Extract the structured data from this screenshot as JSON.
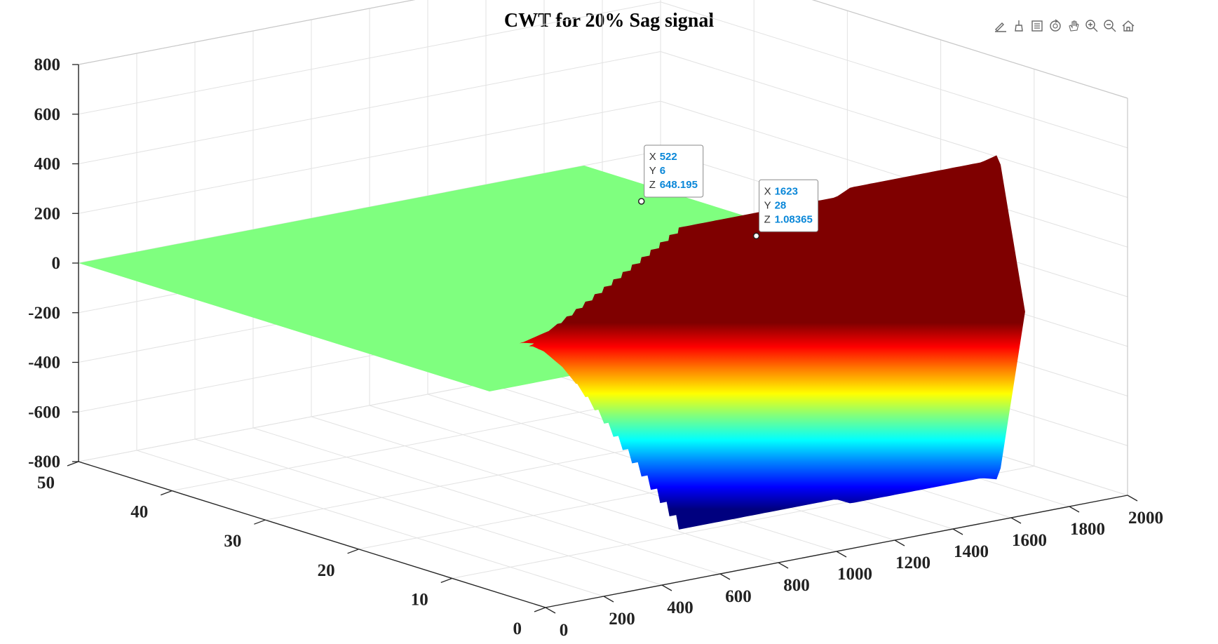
{
  "chart_data": {
    "type": "surface",
    "title": "CWT for 20% Sag signal",
    "xlabel": "",
    "ylabel": "",
    "zlabel": "",
    "xlim": [
      0,
      2000
    ],
    "ylim": [
      0,
      50
    ],
    "zlim": [
      -800,
      800
    ],
    "x_ticks": [
      "0",
      "200",
      "400",
      "600",
      "800",
      "1000",
      "1200",
      "1400",
      "1600",
      "1800",
      "2000"
    ],
    "y_ticks": [
      "0",
      "10",
      "20",
      "30",
      "40",
      "50"
    ],
    "z_ticks": [
      "800",
      "600",
      "400",
      "200",
      "0",
      "-200",
      "-400",
      "-600",
      "-800"
    ],
    "colormap": "jet",
    "grid": true,
    "surface_profile": {
      "x": [
        0,
        400,
        490,
        1030,
        1080,
        1530,
        1590,
        1680,
        1737
      ],
      "amplitude_at_low_scale": [
        0,
        0,
        650,
        650,
        680,
        680,
        700,
        0,
        0
      ],
      "description_scale_range": [
        1,
        50
      ]
    },
    "datatips": [
      {
        "x": "522",
        "y": "6",
        "z": "648.195"
      },
      {
        "x": "1623",
        "y": "28",
        "z": "1.08365"
      }
    ]
  },
  "toolbar": {
    "icons": [
      "edit-plot-icon",
      "brush-icon",
      "legend-icon",
      "rotate-icon",
      "pan-icon",
      "zoom-in-icon",
      "zoom-out-icon",
      "home-icon"
    ]
  }
}
